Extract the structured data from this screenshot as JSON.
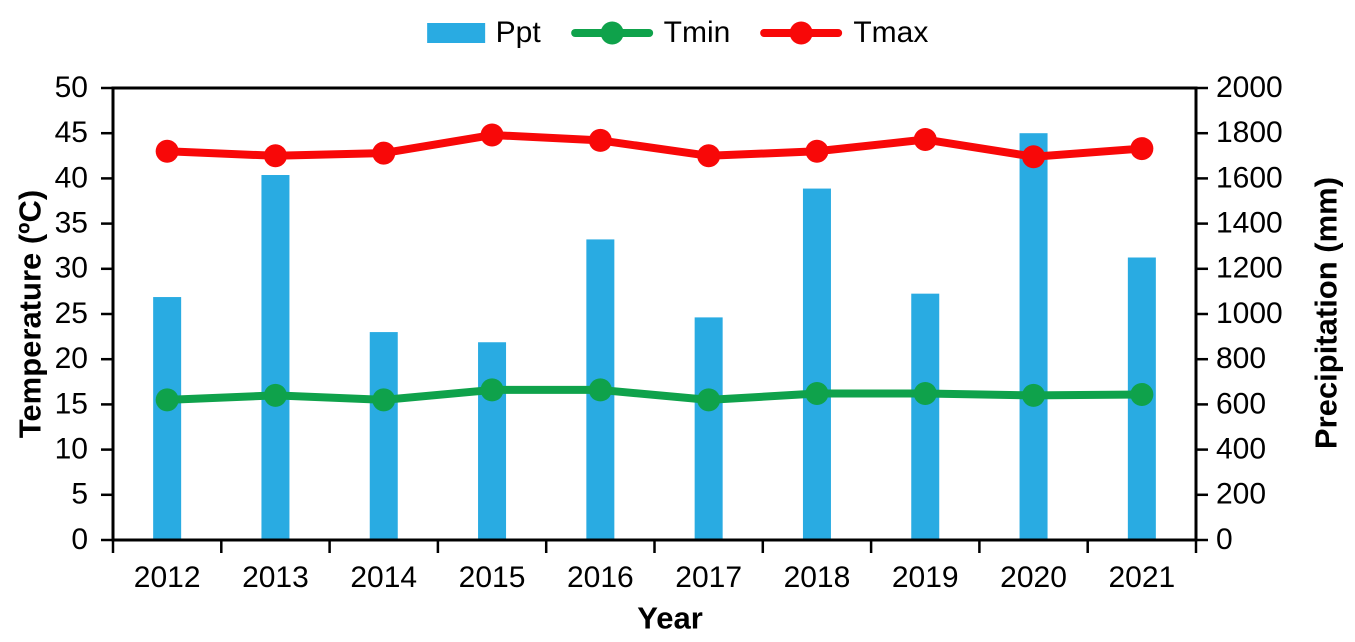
{
  "chart_data": {
    "type": "combo-bar-line",
    "title": "",
    "categories": [
      "2012",
      "2013",
      "2014",
      "2015",
      "2016",
      "2017",
      "2018",
      "2019",
      "2020",
      "2021"
    ],
    "series": [
      {
        "name": "Ppt",
        "type": "bar",
        "axis": "right",
        "color": "#29ABE2",
        "values": [
          1075,
          1615,
          920,
          875,
          1330,
          985,
          1555,
          1090,
          1800,
          1250
        ]
      },
      {
        "name": "Tmin",
        "type": "line",
        "axis": "left",
        "color": "#0FA24B",
        "values": [
          15.5,
          16.0,
          15.5,
          16.6,
          16.6,
          15.5,
          16.2,
          16.2,
          16.0,
          16.1
        ]
      },
      {
        "name": "Tmax",
        "type": "line",
        "axis": "left",
        "color": "#F80808",
        "values": [
          43.0,
          42.5,
          42.8,
          44.8,
          44.2,
          42.5,
          43.0,
          44.3,
          42.4,
          43.3
        ]
      }
    ],
    "x_axis": {
      "title": "Year"
    },
    "left_axis": {
      "title": "Temperature (ºC)",
      "min": 0,
      "max": 50,
      "step": 5,
      "ticks": [
        "0",
        "5",
        "10",
        "15",
        "20",
        "25",
        "30",
        "35",
        "40",
        "45",
        "50"
      ]
    },
    "right_axis": {
      "title": "Precipitation (mm)",
      "min": 0,
      "max": 2000,
      "step": 200,
      "ticks": [
        "0",
        "200",
        "400",
        "600",
        "800",
        "1000",
        "1200",
        "1400",
        "1600",
        "1800",
        "2000"
      ]
    },
    "legend": {
      "position": "top",
      "entries": [
        "Ppt",
        "Tmin",
        "Tmax"
      ]
    },
    "grid": false,
    "frame_color": "#000000",
    "text_color": "#000000",
    "background": "#FFFFFF"
  }
}
